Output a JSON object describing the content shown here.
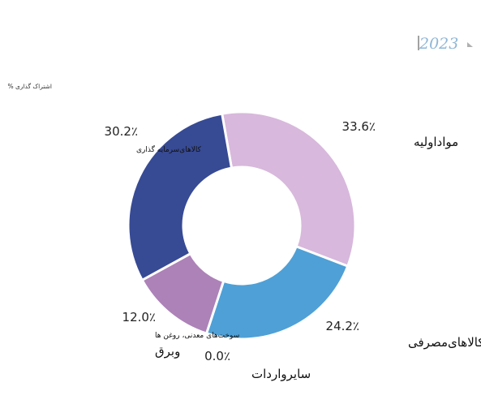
{
  "chart_data": {
    "type": "pie",
    "subtitle": "% اشتراک گذاری",
    "year_selector": "2023",
    "slices": [
      {
        "label": "موادا‌ولیه",
        "value": 33.6,
        "value_label": "33.6٪",
        "color": "#d8b8dc"
      },
      {
        "label": "کالاهای‌مصرفی",
        "value": 24.2,
        "value_label": "24.2٪",
        "color": "#4fa0d6"
      },
      {
        "label": "سایرواردات",
        "value": 0.0,
        "value_label": "0.0٪",
        "color": "#ffffff"
      },
      {
        "label_lines": [
          "سوخت‌های معدنی، روغن ها",
          "وبرق"
        ],
        "value": 12.0,
        "value_label": "12.0٪",
        "color": "#ad82b8"
      },
      {
        "label": "کالاهای‌سرمایه گذاری",
        "value": 30.2,
        "value_label": "30.2٪",
        "color": "#374a94"
      }
    ]
  }
}
